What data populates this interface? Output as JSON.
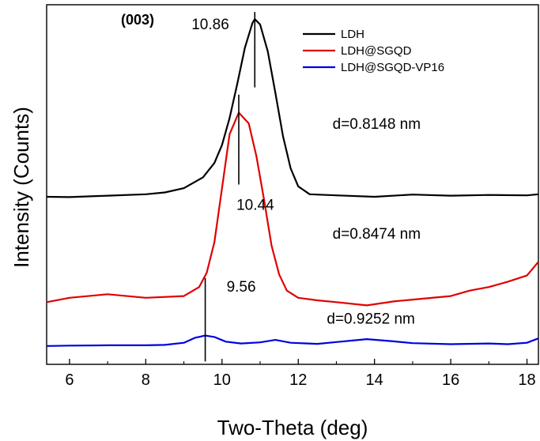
{
  "chart_data": {
    "type": "line",
    "xlabel": "Two-Theta (deg)",
    "ylabel": "Intensity (Counts)",
    "xlim": [
      5.4,
      18.3
    ],
    "ylim": [
      0,
      100
    ],
    "x_ticks": [
      6,
      8,
      10,
      12,
      14,
      16,
      18
    ],
    "y_ticks": [],
    "grid": false,
    "legend_position": "top-right",
    "series": [
      {
        "name": "LDH",
        "color": "#000000",
        "x": [
          5.4,
          6.0,
          7.0,
          8.0,
          8.5,
          9.0,
          9.5,
          9.8,
          10.0,
          10.2,
          10.4,
          10.6,
          10.8,
          10.86,
          11.0,
          11.2,
          11.4,
          11.6,
          11.8,
          12.0,
          12.3,
          13.0,
          14.0,
          15.0,
          16.0,
          17.0,
          18.0,
          18.3
        ],
        "y": [
          46.6,
          46.5,
          46.9,
          47.3,
          47.8,
          49.0,
          52.0,
          56.0,
          61.0,
          68.5,
          78.0,
          88.0,
          95.0,
          96.0,
          94.5,
          87.0,
          75.5,
          63.5,
          54.5,
          49.5,
          47.3,
          47.0,
          46.6,
          47.2,
          46.9,
          47.1,
          47.0,
          47.3
        ]
      },
      {
        "name": "LDH@SGQD",
        "color": "#e00000",
        "x": [
          5.4,
          6.0,
          7.0,
          8.0,
          9.0,
          9.4,
          9.6,
          9.8,
          10.0,
          10.2,
          10.44,
          10.7,
          10.9,
          11.1,
          11.3,
          11.5,
          11.7,
          12.0,
          12.5,
          13.0,
          13.8,
          14.5,
          15.0,
          16.0,
          16.5,
          17.0,
          17.5,
          18.0,
          18.3
        ],
        "y": [
          17.3,
          18.5,
          19.5,
          18.5,
          19.0,
          21.5,
          25.5,
          34.0,
          49.0,
          64.0,
          70.0,
          67.0,
          58.0,
          46.0,
          33.0,
          25.0,
          20.5,
          18.5,
          17.8,
          17.3,
          16.4,
          17.5,
          18.0,
          19.0,
          20.5,
          21.5,
          23.0,
          24.7,
          28.5
        ]
      },
      {
        "name": "LDH@SGQD-VP16",
        "color": "#0000e0",
        "x": [
          5.4,
          6.0,
          7.0,
          8.0,
          8.5,
          9.0,
          9.3,
          9.56,
          9.8,
          10.1,
          10.5,
          11.0,
          11.4,
          11.8,
          12.5,
          13.0,
          13.8,
          14.5,
          15.0,
          16.0,
          17.0,
          17.5,
          18.0,
          18.3
        ],
        "y": [
          5.1,
          5.2,
          5.3,
          5.3,
          5.4,
          6.0,
          7.4,
          8.0,
          7.6,
          6.3,
          5.8,
          6.1,
          6.8,
          6.0,
          5.7,
          6.2,
          7.0,
          6.4,
          5.9,
          5.6,
          5.8,
          5.6,
          6.0,
          7.2
        ]
      }
    ],
    "annotations": [
      {
        "text": "(003)",
        "x": 7.35,
        "y": 94.5,
        "bold": true
      },
      {
        "text": "10.86",
        "x": 9.2,
        "y": 93.2
      },
      {
        "text": "d=0.8148 nm",
        "x": 12.9,
        "y": 65.5
      },
      {
        "text": "10.44",
        "x": 10.38,
        "y": 43.0
      },
      {
        "text": "d=0.8474 nm",
        "x": 12.9,
        "y": 35.0
      },
      {
        "text": "9.56",
        "x": 10.12,
        "y": 20.2
      },
      {
        "text": "d=0.9252 nm",
        "x": 12.75,
        "y": 11.3
      }
    ],
    "peak_markers": [
      {
        "x": 10.86,
        "y_top": 98.0,
        "y_bottom": 77.0
      },
      {
        "x": 10.44,
        "y_top": 75.0,
        "y_bottom": 50.0
      },
      {
        "x": 9.56,
        "y_top": 24.0,
        "y_bottom": 0.8
      }
    ]
  }
}
